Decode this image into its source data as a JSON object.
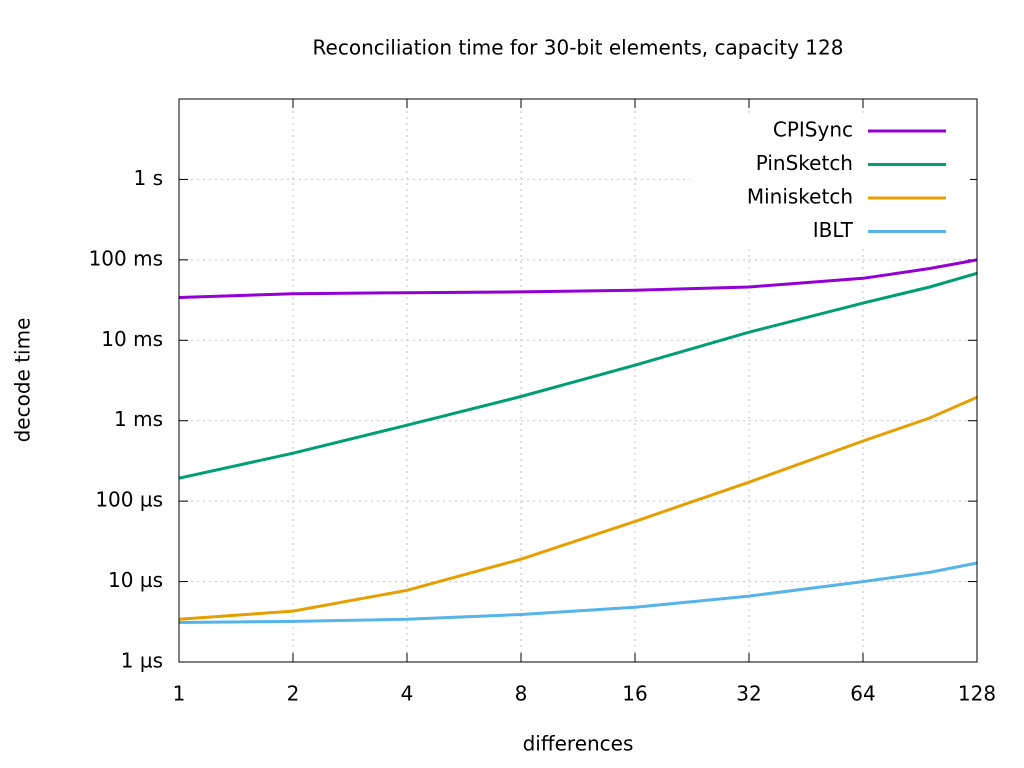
{
  "chart_data": {
    "type": "line",
    "title": "Reconciliation time for 30-bit elements, capacity 128",
    "x_label": "differences",
    "y_label": "decode time",
    "x": [
      1,
      2,
      4,
      8,
      16,
      32,
      64,
      96,
      128
    ],
    "xlim": [
      1,
      128
    ],
    "xticks": [
      1,
      2,
      4,
      8,
      16,
      32,
      64,
      128
    ],
    "ylim": [
      1e-06,
      10
    ],
    "yticks": [
      {
        "value": 1e-06,
        "label": "1 µs"
      },
      {
        "value": 1e-05,
        "label": "10 µs"
      },
      {
        "value": 0.0001,
        "label": "100 µs"
      },
      {
        "value": 0.001,
        "label": "1 ms"
      },
      {
        "value": 0.01,
        "label": "10 ms"
      },
      {
        "value": 0.1,
        "label": "100 ms"
      },
      {
        "value": 1,
        "label": "1 s"
      }
    ],
    "log_x": true,
    "log_y": true,
    "grid": true,
    "legend": "top-right",
    "series": [
      {
        "name": "CPISync",
        "color": "#9400d3",
        "values": [
          0.034,
          0.038,
          0.039,
          0.04,
          0.042,
          0.046,
          0.059,
          0.078,
          0.1
        ]
      },
      {
        "name": "PinSketch",
        "color": "#009e73",
        "values": [
          0.000193,
          0.000395,
          0.00088,
          0.002,
          0.0049,
          0.0126,
          0.029,
          0.046,
          0.068
        ]
      },
      {
        "name": "Minisketch",
        "color": "#e69f00",
        "values": [
          3.4e-06,
          4.3e-06,
          7.8e-06,
          1.9e-05,
          5.6e-05,
          0.000172,
          0.00056,
          0.00108,
          0.00196
        ]
      },
      {
        "name": "IBLT",
        "color": "#56b4e9",
        "values": [
          3.1e-06,
          3.2e-06,
          3.4e-06,
          3.9e-06,
          4.8e-06,
          6.6e-06,
          1e-05,
          1.3e-05,
          1.7e-05
        ]
      }
    ]
  }
}
